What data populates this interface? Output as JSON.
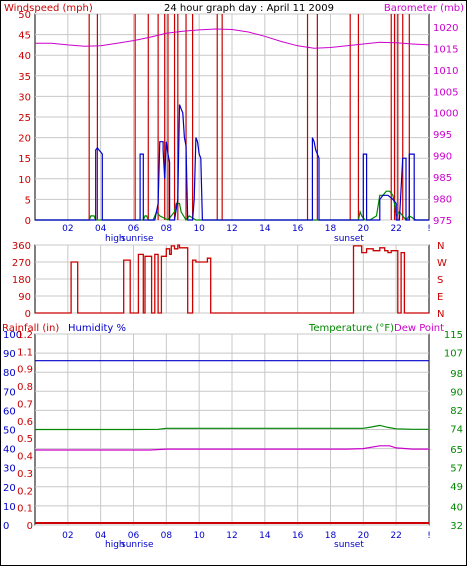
{
  "chart_data": [
    {
      "type": "line",
      "title": "24 hour graph day : April 11 2009",
      "left_axis_label": "Windspeed (mph)",
      "right_axis_label": "Barometer (mb)",
      "x_ticks": [
        "02",
        "04",
        "06",
        "08",
        "10",
        "12",
        "14",
        "16",
        "18",
        "20",
        "22",
        "!"
      ],
      "x_markers": [
        "high",
        "sunrise",
        "sunset"
      ],
      "y_left_ticks": [
        "0",
        "5",
        "10",
        "15",
        "20",
        "25",
        "30",
        "35",
        "40",
        "45",
        "50"
      ],
      "y_left_range": [
        0,
        50
      ],
      "y_right_ticks": [
        "975",
        "980",
        "985",
        "990",
        "995",
        "1000",
        "1005",
        "1010",
        "1015",
        "1020"
      ],
      "y_right_range": [
        975,
        1023
      ],
      "grid": true,
      "colors": {
        "wind": "#0000cc",
        "gust": "#008800",
        "barometer": "#cc00cc",
        "rain_marker": "#cc0000"
      },
      "series": [
        {
          "name": "Windspeed",
          "x": [
            0,
            2,
            3.7,
            3.7,
            3.8,
            3.9,
            4.0,
            4.1,
            4.1,
            6.4,
            6.4,
            6.6,
            6.6,
            7.3,
            7.5,
            7.6,
            7.7,
            7.8,
            7.8,
            7.9,
            8.0,
            8.1,
            8.2,
            8.2,
            8.5,
            8.7,
            8.8,
            8.9,
            9.0,
            9.1,
            9.2,
            9.3,
            9.6,
            9.7,
            9.8,
            9.9,
            10.0,
            10.1,
            10.2,
            16.9,
            16.9,
            17.0,
            17.1,
            17.2,
            17.3,
            17.3,
            20.0,
            20.0,
            20.2,
            20.2,
            21.0,
            21.0,
            21.2,
            21.5,
            21.8,
            22.0,
            22.0,
            22.2,
            22.4,
            22.6,
            22.6,
            22.8,
            22.8,
            23.1,
            23.1,
            24
          ],
          "values": [
            0,
            0,
            0,
            17,
            17.5,
            17,
            16.5,
            16,
            0,
            0,
            16,
            16,
            0,
            0,
            4,
            19,
            19,
            19,
            17,
            10,
            19,
            16,
            14,
            0,
            0,
            5,
            28,
            27,
            26,
            20,
            18,
            0,
            0,
            5,
            20,
            19,
            16,
            15,
            0,
            0,
            20,
            19,
            17,
            16,
            15,
            0,
            0,
            16,
            16,
            0,
            0,
            5,
            6,
            6,
            5,
            4,
            0,
            0,
            15,
            15,
            0,
            0,
            16,
            16,
            0,
            0
          ]
        },
        {
          "name": "Gust",
          "x": [
            0,
            3.3,
            3.4,
            3.5,
            3.6,
            3.7,
            6.6,
            6.7,
            6.8,
            6.9,
            7.2,
            7.4,
            7.6,
            8.1,
            8.3,
            8.5,
            8.6,
            8.8,
            8.9,
            9.2,
            9.4,
            9.8,
            10.2,
            19.7,
            19.8,
            19.9,
            20.1,
            20.4,
            20.8,
            21.0,
            21.2,
            21.4,
            21.6,
            21.8,
            21.9,
            22.0,
            22.2,
            22.4,
            22.6,
            22.8,
            23.2,
            24
          ],
          "values": [
            0,
            0,
            1,
            1,
            1,
            0,
            0,
            1,
            1,
            0,
            0,
            2,
            1,
            0,
            1,
            2,
            4,
            4,
            2,
            0,
            1,
            0,
            0,
            0,
            2,
            1,
            0,
            0,
            1,
            6,
            6,
            7,
            7,
            6,
            4,
            1,
            2,
            1,
            0,
            1,
            0,
            0
          ]
        },
        {
          "name": "Barometer",
          "x": [
            0,
            1,
            2,
            3,
            4,
            5,
            6,
            7,
            8,
            9,
            10,
            11,
            12,
            13,
            14,
            15,
            16,
            17,
            18,
            19,
            20,
            21,
            22,
            23,
            24
          ],
          "values": [
            1016.2,
            1016.2,
            1015.8,
            1015.5,
            1015.6,
            1016.2,
            1016.8,
            1017.6,
            1018.5,
            1019.0,
            1019.3,
            1019.5,
            1019.4,
            1018.8,
            1017.8,
            1016.6,
            1015.6,
            1015.0,
            1015.2,
            1015.6,
            1016.0,
            1016.4,
            1016.3,
            1016.0,
            1015.8
          ]
        },
        {
          "name": "Rain markers",
          "x": [
            3.3,
            3.8,
            6.1,
            6.9,
            7.5,
            7.9,
            8.1,
            8.5,
            8.7,
            9.2,
            9.6,
            11.1,
            11.4,
            16.6,
            17.2,
            19.2,
            19.7,
            21.7,
            21.9,
            22.1,
            22.4,
            22.8
          ],
          "values": [
            50,
            50,
            50,
            50,
            50,
            50,
            50,
            50,
            50,
            50,
            50,
            50,
            50,
            50,
            50,
            50,
            50,
            50,
            50,
            50,
            50,
            50
          ]
        }
      ]
    },
    {
      "type": "line",
      "left_axis_label": "",
      "y_left_ticks": [
        "360",
        "270",
        "180",
        "90",
        "0"
      ],
      "y_left_range": [
        0,
        360
      ],
      "y_right_ticks": [
        "N",
        "W",
        "S",
        "E",
        "N"
      ],
      "x_ticks": [],
      "grid": true,
      "colors": {
        "direction": "#cc0000"
      },
      "series": [
        {
          "name": "Wind direction",
          "x": [
            0,
            2.2,
            2.2,
            2.6,
            2.6,
            5.4,
            5.4,
            5.8,
            5.8,
            6.3,
            6.3,
            6.6,
            6.6,
            6.7,
            6.7,
            7.1,
            7.1,
            7.3,
            7.3,
            7.5,
            7.5,
            7.7,
            7.7,
            8.0,
            8.0,
            8.2,
            8.2,
            8.3,
            8.3,
            8.5,
            8.5,
            8.7,
            8.7,
            8.8,
            8.8,
            9.3,
            9.3,
            9.6,
            9.6,
            9.8,
            9.8,
            10.5,
            10.5,
            10.7,
            10.7,
            19.4,
            19.4,
            19.9,
            19.9,
            20.2,
            20.2,
            20.6,
            20.6,
            21.0,
            21.0,
            21.3,
            21.3,
            21.5,
            21.5,
            21.7,
            21.7,
            22.1,
            22.1,
            22.3,
            22.3,
            22.5,
            22.5,
            24
          ],
          "values": [
            0,
            0,
            270,
            270,
            0,
            0,
            280,
            280,
            0,
            0,
            310,
            310,
            0,
            0,
            300,
            300,
            0,
            0,
            310,
            310,
            0,
            0,
            300,
            300,
            340,
            340,
            310,
            310,
            355,
            355,
            340,
            340,
            360,
            360,
            345,
            345,
            0,
            0,
            280,
            280,
            270,
            270,
            290,
            290,
            0,
            0,
            355,
            355,
            320,
            320,
            340,
            340,
            330,
            330,
            345,
            345,
            330,
            330,
            320,
            320,
            330,
            330,
            0,
            0,
            320,
            320,
            0,
            0
          ]
        }
      ]
    },
    {
      "type": "line",
      "left_axis_labels": [
        "Rainfall (in)",
        "Humidity %"
      ],
      "right_axis_labels": [
        "Temperature (°F)",
        "Dew Point"
      ],
      "x_ticks": [
        "02",
        "04",
        "06",
        "08",
        "10",
        "12",
        "14",
        "16",
        "18",
        "20",
        "22",
        "!"
      ],
      "x_markers": [
        "high",
        "sunrise",
        "sunset"
      ],
      "y_humidity_ticks": [
        "0",
        "10",
        "20",
        "30",
        "40",
        "50",
        "60",
        "70",
        "80",
        "90",
        "100"
      ],
      "y_humidity_range": [
        0,
        100
      ],
      "y_rain_ticks": [
        "0",
        "0.1",
        "0.2",
        "0.3",
        "0.4",
        "0.5",
        "0.6",
        "0.7",
        "0.8",
        "0.9",
        "1.1",
        "1.2"
      ],
      "y_temp_ticks": [
        "32",
        "40",
        "49",
        "57",
        "65",
        "74",
        "82",
        "90",
        "98",
        "107",
        "115"
      ],
      "y_temp_range": [
        32,
        115
      ],
      "grid": true,
      "colors": {
        "humidity": "#0000cc",
        "temperature": "#008800",
        "dewpoint": "#cc00cc",
        "rain": "#cc0000"
      },
      "series": [
        {
          "name": "Humidity %",
          "x": [
            0,
            24
          ],
          "values": [
            86,
            86
          ]
        },
        {
          "name": "Temperature (°F)",
          "x": [
            0,
            6,
            7.5,
            8,
            19,
            20,
            20.5,
            21,
            21.5,
            22,
            23,
            24
          ],
          "values": [
            73.5,
            73.5,
            73.6,
            74,
            74,
            74,
            74.6,
            75.3,
            74.4,
            73.8,
            73.6,
            73.6
          ]
        },
        {
          "name": "Dew Point",
          "x": [
            0,
            7,
            8,
            19,
            20,
            21,
            21.6,
            22,
            23,
            24
          ],
          "values": [
            64.6,
            64.6,
            65,
            65,
            65.2,
            66.4,
            66.4,
            65.5,
            65,
            65
          ]
        },
        {
          "name": "Rainfall (in)",
          "x": [
            0,
            24
          ],
          "values": [
            0,
            0
          ]
        }
      ]
    }
  ]
}
